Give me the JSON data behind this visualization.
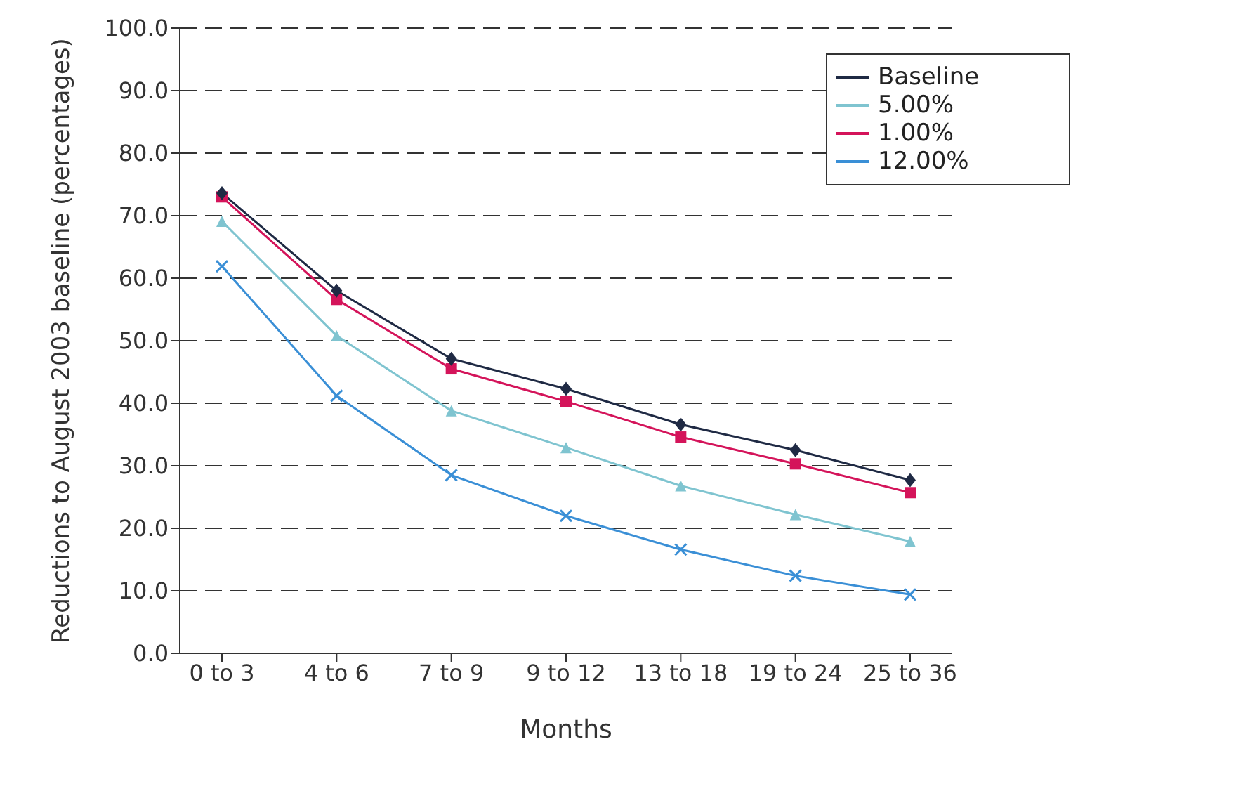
{
  "chart_data": {
    "type": "line",
    "xlabel": "Months",
    "ylabel": "Reductions to August 2003 baseline (percentages)",
    "categories": [
      "0 to 3",
      "4 to 6",
      "7 to 9",
      "9 to 12",
      "13 to 18",
      "19 to 24",
      "25 to 36"
    ],
    "series": [
      {
        "name": "Baseline",
        "color": "#1f2a44",
        "marker": "diamond",
        "values": [
          73.6,
          58.0,
          47.1,
          42.3,
          36.6,
          32.5,
          27.7
        ]
      },
      {
        "name": "5.00%",
        "color": "#7fc4d0",
        "marker": "triangle",
        "values": [
          69.1,
          50.8,
          38.8,
          32.9,
          26.8,
          22.2,
          17.9
        ]
      },
      {
        "name": "1.00%",
        "color": "#d4145a",
        "marker": "square",
        "values": [
          73.0,
          56.6,
          45.5,
          40.3,
          34.6,
          30.3,
          25.7
        ]
      },
      {
        "name": "12.00%",
        "color": "#3a8fd6",
        "marker": "cross",
        "values": [
          61.9,
          41.2,
          28.5,
          22.0,
          16.6,
          12.4,
          9.4
        ]
      }
    ],
    "ylim": [
      0,
      100
    ],
    "yticks": [
      {
        "value": 0,
        "label": "0.0"
      },
      {
        "value": 10,
        "label": "10.0"
      },
      {
        "value": 20,
        "label": "20.0"
      },
      {
        "value": 30,
        "label": "30.0"
      },
      {
        "value": 40,
        "label": "40.0"
      },
      {
        "value": 50,
        "label": "50.0"
      },
      {
        "value": 60,
        "label": "60.0"
      },
      {
        "value": 70,
        "label": "70.0"
      },
      {
        "value": 80,
        "label": "80.0"
      },
      {
        "value": 90,
        "label": "90.0"
      },
      {
        "value": 100,
        "label": "100.0"
      }
    ],
    "grid": "y",
    "legend": "top right",
    "line_style": "solid"
  }
}
